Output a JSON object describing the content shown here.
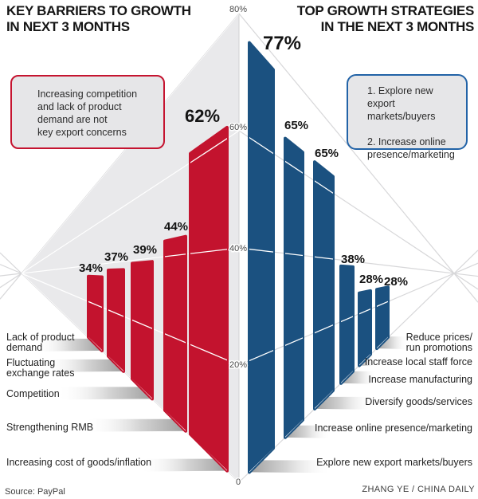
{
  "page": {
    "left_title": "KEY BARRIERS TO GROWTH\nIN NEXT 3 MONTHS",
    "right_title": "TOP GROWTH STRATEGIES\nIN THE NEXT 3 MONTHS",
    "source": "Source: PayPal",
    "credit": "ZHANG YE / CHINA DAILY"
  },
  "callouts": {
    "barriers_note": "Increasing competition\nand lack of product\ndemand are not\nkey export concerns",
    "strategies_note": "1. Explore new export\nmarkets/buyers\n\n2. Increase online\npresence/marketing"
  },
  "colors": {
    "barrier_red": "#c3132e",
    "strategy_blue": "#1b5180",
    "red_box_border": "#c51430",
    "blue_box_border": "#2263a7",
    "fan_fill": "#e9e9eb",
    "fan_line": "#d7d7d9",
    "white_line": "#ffffff",
    "ramp_gray": "#9e9e9e",
    "axis_text": "#4a4a4a",
    "label_text": "#1f1f1f",
    "value_text": "#141414"
  },
  "chart_data": {
    "type": "bar",
    "title": "Key barriers vs top growth strategies (back-to-back perspective pyramid)",
    "ylim": [
      0,
      80
    ],
    "grid": "perspective fan lines at 20% steps",
    "legend_position": "none",
    "axis": {
      "ticks": [
        "80%",
        "60%",
        "40%",
        "20%",
        "0"
      ],
      "tick_values": [
        80,
        60,
        40,
        20,
        0
      ]
    },
    "series": [
      {
        "name": "KEY BARRIERS TO GROWTH IN NEXT 3 MONTHS",
        "side": "left",
        "color": "#c3132e",
        "categories": [
          "Lack of product\ndemand",
          "Fluctuating\nexchange rates",
          "Competition",
          "Strengthening RMB",
          "Increasing cost of goods/inflation"
        ],
        "values": [
          34,
          37,
          39,
          44,
          62
        ],
        "value_labels": [
          "34%",
          "37%",
          "39%",
          "44%",
          "62%"
        ]
      },
      {
        "name": "TOP GROWTH STRATEGIES IN THE NEXT 3 MONTHS",
        "side": "right",
        "color": "#1b5180",
        "categories": [
          "Reduce prices/\nrun promotions",
          "Increase local staff force",
          "Increase manufacturing",
          "Diversify goods/services",
          "Increase online presence/marketing",
          "Explore new export markets/buyers"
        ],
        "values": [
          28,
          28,
          38,
          65,
          65,
          77
        ],
        "value_labels": [
          "28%",
          "28%",
          "38%",
          "65%",
          "65%",
          "77%"
        ]
      }
    ]
  }
}
